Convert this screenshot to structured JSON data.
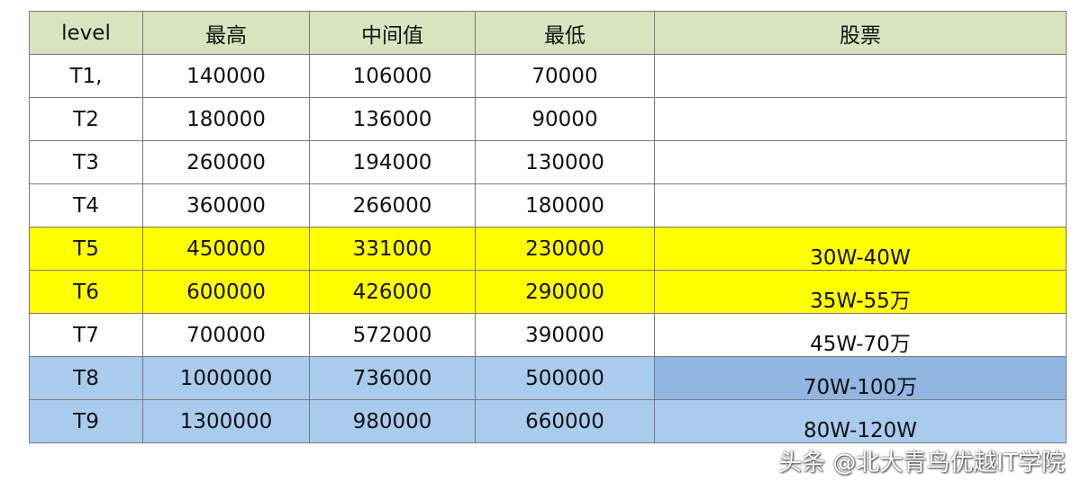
{
  "headers": [
    "level",
    "最高",
    "中间值",
    "最低",
    "股票"
  ],
  "rows": [
    {
      "level": "T1,",
      "max": "140000",
      "mid": "106000",
      "min": "70000",
      "stock": ""
    },
    {
      "level": "T2",
      "max": "180000",
      "mid": "136000",
      "min": "90000",
      "stock": ""
    },
    {
      "level": "T3",
      "max": "260000",
      "mid": "194000",
      "min": "130000",
      "stock": ""
    },
    {
      "level": "T4",
      "max": "360000",
      "mid": "266000",
      "min": "180000",
      "stock": ""
    },
    {
      "level": "T5",
      "max": "450000",
      "mid": "331000",
      "min": "230000",
      "stock": "30W-40W"
    },
    {
      "level": "T6",
      "max": "600000",
      "mid": "426000",
      "min": "290000",
      "stock": "35W-55万"
    },
    {
      "level": "T7",
      "max": "700000",
      "mid": "572000",
      "min": "390000",
      "stock": "45W-70万"
    },
    {
      "level": "T8",
      "max": "1000000",
      "mid": "736000",
      "min": "500000",
      "stock": "70W-100万"
    },
    {
      "level": "T9",
      "max": "1300000",
      "mid": "980000",
      "min": "660000",
      "stock": "80W-120W"
    }
  ],
  "watermark": "头条 @北大青鸟优越IT学院",
  "colors": {
    "header": "#d7e4bd",
    "highlight_yellow": "#ffff00",
    "highlight_blue": "#a9cbee"
  }
}
